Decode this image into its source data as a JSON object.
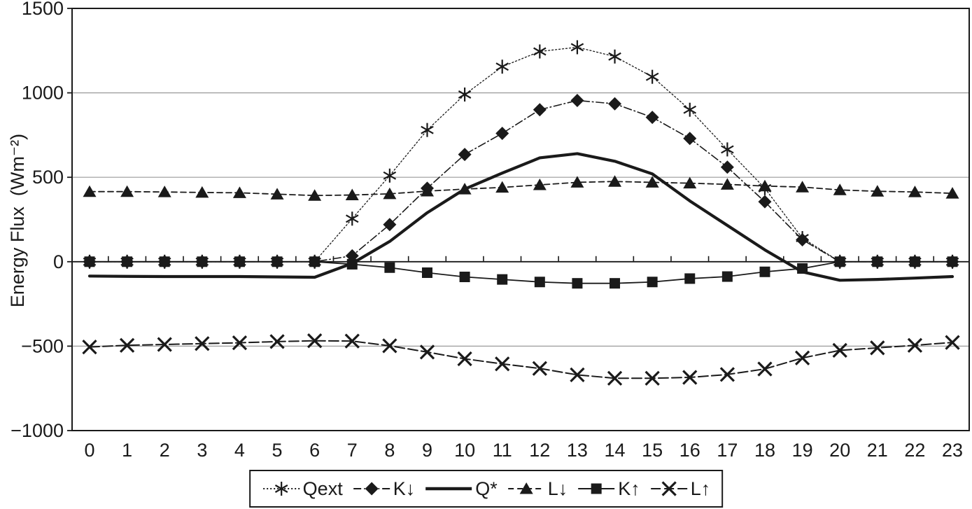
{
  "figure": {
    "background": "#ffffff",
    "ink_color": "#1a1a1a",
    "grid_color": "#9a9a9a"
  },
  "chart_data": {
    "type": "line",
    "title": "",
    "xlabel": "",
    "ylabel": "Energy Flux  (Wm⁻²)",
    "x": [
      0,
      1,
      2,
      3,
      4,
      5,
      6,
      7,
      8,
      9,
      10,
      11,
      12,
      13,
      14,
      15,
      16,
      17,
      18,
      19,
      20,
      21,
      22,
      23
    ],
    "ylim": [
      -1000,
      1500
    ],
    "yticks": [
      1500,
      1000,
      500,
      0,
      -500,
      -1000
    ],
    "grid_y": [
      1000,
      500,
      -500
    ],
    "axis_cross_y": 0,
    "grid": "horizontal",
    "legend_position": "bottom",
    "series": [
      {
        "name": "Qext",
        "marker": "asterisk",
        "line": "dotted",
        "width": 1.3,
        "values": [
          0,
          0,
          0,
          0,
          0,
          0,
          0,
          255,
          510,
          780,
          990,
          1155,
          1245,
          1270,
          1215,
          1095,
          900,
          665,
          435,
          140,
          0,
          0,
          0,
          0
        ]
      },
      {
        "name": "K↓",
        "marker": "diamond",
        "line": "dashdot",
        "width": 1.6,
        "values": [
          0,
          0,
          0,
          0,
          0,
          0,
          0,
          35,
          220,
          435,
          635,
          760,
          900,
          955,
          935,
          855,
          730,
          560,
          355,
          130,
          0,
          0,
          0,
          0
        ]
      },
      {
        "name": "Q*",
        "marker": "none",
        "line": "solid",
        "width": 4.2,
        "values": [
          -85,
          -87,
          -88,
          -88,
          -88,
          -90,
          -92,
          -10,
          120,
          290,
          430,
          525,
          615,
          640,
          595,
          520,
          360,
          215,
          70,
          -60,
          -110,
          -105,
          -97,
          -88
        ]
      },
      {
        "name": "L↓",
        "marker": "triangle",
        "line": "dashed",
        "width": 1.8,
        "values": [
          415,
          415,
          413,
          410,
          408,
          400,
          392,
          395,
          402,
          418,
          430,
          440,
          455,
          470,
          475,
          470,
          465,
          458,
          448,
          442,
          425,
          417,
          413,
          405
        ]
      },
      {
        "name": "K↑",
        "marker": "square",
        "line": "solid",
        "width": 1.8,
        "values": [
          0,
          0,
          0,
          0,
          0,
          0,
          0,
          -15,
          -35,
          -65,
          -90,
          -105,
          -120,
          -128,
          -128,
          -120,
          -100,
          -88,
          -60,
          -40,
          0,
          0,
          0,
          0
        ]
      },
      {
        "name": "L↑",
        "marker": "x",
        "line": "longdash",
        "width": 2,
        "values": [
          -505,
          -495,
          -490,
          -485,
          -480,
          -473,
          -468,
          -470,
          -498,
          -535,
          -575,
          -605,
          -632,
          -670,
          -690,
          -690,
          -685,
          -668,
          -635,
          -570,
          -525,
          -510,
          -495,
          -478
        ]
      }
    ]
  }
}
